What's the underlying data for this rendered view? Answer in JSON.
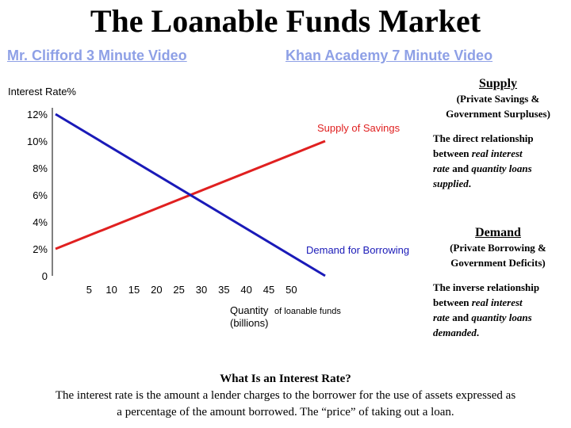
{
  "title": "The Loanable Funds Market",
  "links": {
    "video1": "Mr. Clifford 3 Minute Video",
    "video2": "Khan Academy 7 Minute Video"
  },
  "supply": {
    "heading": "Supply",
    "subtitle_line1": "(Private Savings &",
    "subtitle_line2": "Government Surpluses)",
    "desc_line1": "The direct relationship",
    "desc_line2_a": "between ",
    "desc_line2_b": "real interest",
    "desc_line3_a": "rate",
    "desc_line3_b": " and ",
    "desc_line3_c": "quantity loans",
    "desc_line4_a": "supplied",
    "desc_line4_b": "."
  },
  "demand": {
    "heading": "Demand",
    "subtitle_line1": "(Private Borrowing &",
    "subtitle_line2": "Government Deficits)",
    "desc_line1": "The inverse relationship",
    "desc_line2_a": "between ",
    "desc_line2_b": "real interest",
    "desc_line3_a": "rate",
    "desc_line3_b": " and ",
    "desc_line3_c": "quantity loans",
    "desc_line4_a": "demanded",
    "desc_line4_b": "."
  },
  "bottom": {
    "question": "What Is an Interest Rate?",
    "line1": "The interest rate is the amount a lender charges to the borrower for the use of assets expressed as",
    "line2": "a percentage of the amount borrowed.  The “price” of taking out a loan."
  },
  "chart_data": {
    "type": "line",
    "title": "",
    "ylabel": "Interest Rate%",
    "xlabel_line1": "Quantity",
    "xlabel_line1_suffix": "of loanable funds",
    "xlabel_line2": "(billions)",
    "x_ticks": [
      5,
      10,
      15,
      20,
      25,
      30,
      35,
      40,
      45,
      50
    ],
    "x_tick_labels": [
      "5",
      "10",
      "15",
      "20",
      "25",
      "30",
      "35",
      "40",
      "45",
      "50"
    ],
    "y_ticks": [
      0,
      2,
      4,
      6,
      8,
      10,
      12
    ],
    "y_tick_labels": [
      "0",
      "2%",
      "4%",
      "6%",
      "8%",
      "10%",
      "12%"
    ],
    "xlim": [
      0,
      62
    ],
    "ylim": [
      0,
      12.5
    ],
    "series": [
      {
        "name": "Supply of Savings",
        "color": "#e02020",
        "points": [
          [
            0,
            2
          ],
          [
            60,
            10
          ]
        ]
      },
      {
        "name": "Demand for Borrowing",
        "color": "#1a1ab8",
        "points": [
          [
            0,
            12
          ],
          [
            60,
            0
          ]
        ]
      }
    ]
  }
}
